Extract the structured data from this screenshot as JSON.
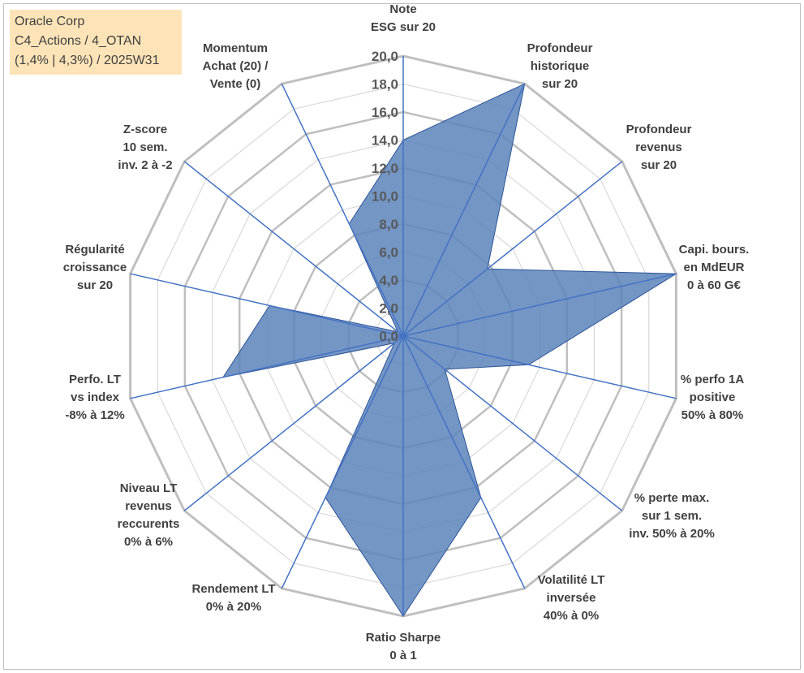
{
  "info": {
    "line1": "Oracle Corp",
    "line2": "C4_Actions / 4_OTAN",
    "line3": "(1,4% | 4,3%) / 2025W31"
  },
  "colors": {
    "fill": "#5a84bb",
    "fill_stroke": "#2f5597",
    "spoke": "#4472c4",
    "ring": "#d9d9d9",
    "outer_ring": "#bfbfbf",
    "info_box": "#fde4b8"
  },
  "chart_data": {
    "type": "radar",
    "rmin": 0,
    "rmax": 20,
    "tick_labels": [
      "0,0",
      "2,0",
      "4,0",
      "6,0",
      "8,0",
      "10,0",
      "12,0",
      "14,0",
      "16,0",
      "18,0",
      "20,0"
    ],
    "categories": [
      "Note\nESG sur 20",
      "Profondeur\nhistorique\nsur 20",
      "Profondeur\nrevenus\nsur 20",
      "Capi. bours.\nen MdEUR\n0 à 60 G€",
      "% perfo 1A\npositive\n50% à 80%",
      "% perte max.\nsur 1 sem.\ninv. 50% à 20%",
      "Volatilité LT\ninversée\n40% à 0%",
      "Ratio Sharpe\n0 à 1",
      "Rendement LT\n0% à 20%",
      "Niveau LT\nrevenus\nreccurents\n0% à 6%",
      "Perfo. LT\nvs index\n-8% à 12%",
      "Régularité\ncroissance\nsur 20",
      "Z-score\n10 sem.\ninv. 2 à -2",
      "Momentum\nAchat (20) /\nVente (0)"
    ],
    "values": [
      14.0,
      20.0,
      7.7,
      20.0,
      9.2,
      3.8,
      12.8,
      20.0,
      12.8,
      0.8,
      13.2,
      9.8,
      0.5,
      8.9
    ]
  }
}
